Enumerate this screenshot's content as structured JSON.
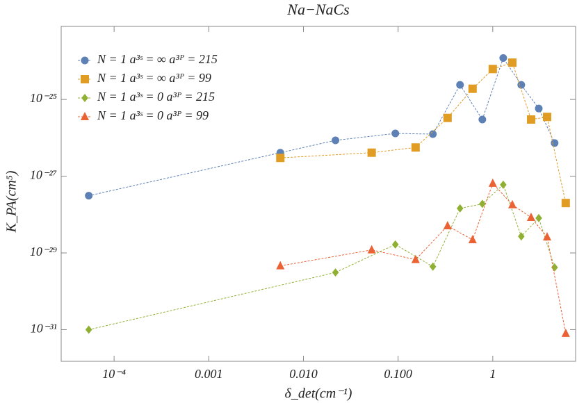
{
  "chart_data": {
    "type": "line",
    "title": "Na−NaCs",
    "xlabel": "δ_det(cm⁻¹)",
    "ylabel": "K_PA(cm⁵)",
    "xscale": "log",
    "yscale": "log",
    "xlim": [
      2.76e-05,
      7.5
    ],
    "ylim": [
      1.5e-32,
      8e-24
    ],
    "xticks": [
      {
        "value": 0.0001,
        "label": "10⁻⁴"
      },
      {
        "value": 0.001,
        "label": "0.001"
      },
      {
        "value": 0.01,
        "label": "0.010"
      },
      {
        "value": 0.1,
        "label": "0.100"
      },
      1
    ],
    "yticks": [
      {
        "value": 1e-31,
        "label": "10⁻³¹"
      },
      {
        "value": 1e-29,
        "label": "10⁻²⁹"
      },
      {
        "value": 1e-27,
        "label": "10⁻²⁷"
      },
      {
        "value": 1e-25,
        "label": "10⁻²⁵"
      }
    ],
    "legend": "top-left",
    "series": [
      {
        "name": "N = 1 a³ˢ = ∞ a³ᴾ = 215",
        "color": "#5e81b5",
        "marker": "circle",
        "x": [
          5.4e-05,
          0.0057,
          0.0218,
          0.0935,
          0.233,
          0.451,
          0.776,
          1.29,
          2.0,
          3.06,
          4.5
        ],
        "values": [
          3.1e-28,
          4.1e-27,
          8.6e-27,
          1.3e-26,
          1.25e-26,
          2.4e-25,
          3e-26,
          1.2e-24,
          2.4e-25,
          5.8e-26,
          7.3e-27
        ]
      },
      {
        "name": "N = 1 a³ˢ = ∞ a³ᴾ = 99",
        "color": "#e19c24",
        "marker": "square",
        "x": [
          0.0057,
          0.0526,
          0.153,
          0.333,
          0.612,
          1.0,
          1.61,
          2.54,
          3.75,
          5.9
        ],
        "values": [
          3e-27,
          4.1e-27,
          5.6e-27,
          3.3e-26,
          1.9e-25,
          6.2e-25,
          9.1e-25,
          3e-26,
          3.5e-26,
          2e-28
        ]
      },
      {
        "name": "N = 1 a³ˢ = 0 a³ᴾ = 215",
        "color": "#8fb032",
        "marker": "diamond",
        "x": [
          5.4e-05,
          0.0218,
          0.0935,
          0.233,
          0.451,
          0.776,
          1.29,
          2.0,
          3.06,
          4.5
        ],
        "values": [
          1e-31,
          3.1e-30,
          1.66e-29,
          4.4e-30,
          1.45e-28,
          1.9e-28,
          6e-28,
          2.7e-29,
          8.1e-29,
          4.2e-30
        ]
      },
      {
        "name": "N = 1 a³ˢ = 0 a³ᴾ = 99",
        "color": "#eb6235",
        "marker": "triangle",
        "x": [
          0.0057,
          0.0526,
          0.153,
          0.333,
          0.612,
          1.0,
          1.61,
          2.54,
          3.75,
          5.9
        ],
        "values": [
          4.6e-30,
          1.2e-29,
          6.7e-30,
          5.1e-29,
          2.2e-29,
          6.5e-28,
          1.8e-28,
          8.4e-29,
          2.6e-29,
          8e-32
        ]
      }
    ]
  }
}
